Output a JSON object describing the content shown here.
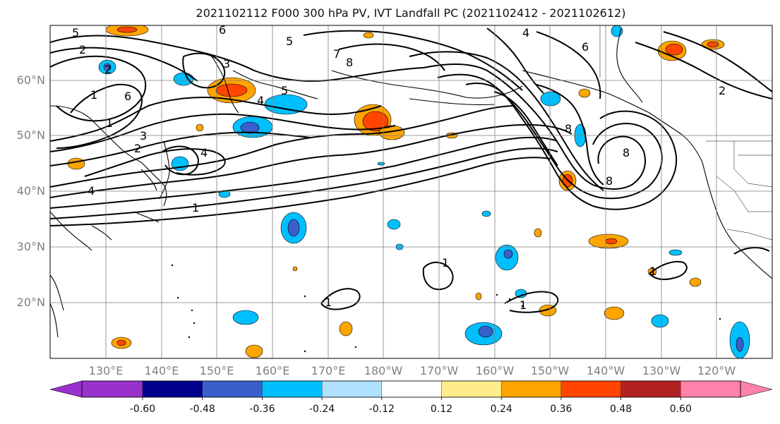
{
  "title": "2021102112 F000 300 hPa PV, IVT Landfall PC (2021102412 - 2021102612)",
  "map": {
    "lat_labels": [
      "60°N",
      "50°N",
      "40°N",
      "30°N",
      "20°N"
    ],
    "lon_labels": [
      "130°E",
      "140°E",
      "150°E",
      "160°E",
      "170°E",
      "180°W",
      "170°W",
      "160°W",
      "150°W",
      "140°W",
      "130°W",
      "120°W"
    ],
    "contour_labels": [
      "5",
      "6",
      "2",
      "3",
      "5",
      "7",
      "8",
      "1",
      "6",
      "2",
      "4",
      "5",
      "1",
      "4",
      "3",
      "2",
      "4",
      "1",
      "1",
      "1",
      "1",
      "1",
      "8",
      "8",
      "8",
      "6",
      "4",
      "2"
    ]
  },
  "colorbar": {
    "ticks": [
      "-0.60",
      "-0.48",
      "-0.36",
      "-0.24",
      "-0.12",
      "0.12",
      "0.24",
      "0.36",
      "0.48",
      "0.60"
    ],
    "colors": [
      "#9932cc",
      "#00008b",
      "#3a5fcd",
      "#00bfff",
      "#b0e2ff",
      "#ffffff",
      "#ffec8b",
      "#ffa500",
      "#ff4500",
      "#b22222",
      "#ff82ab"
    ]
  }
}
